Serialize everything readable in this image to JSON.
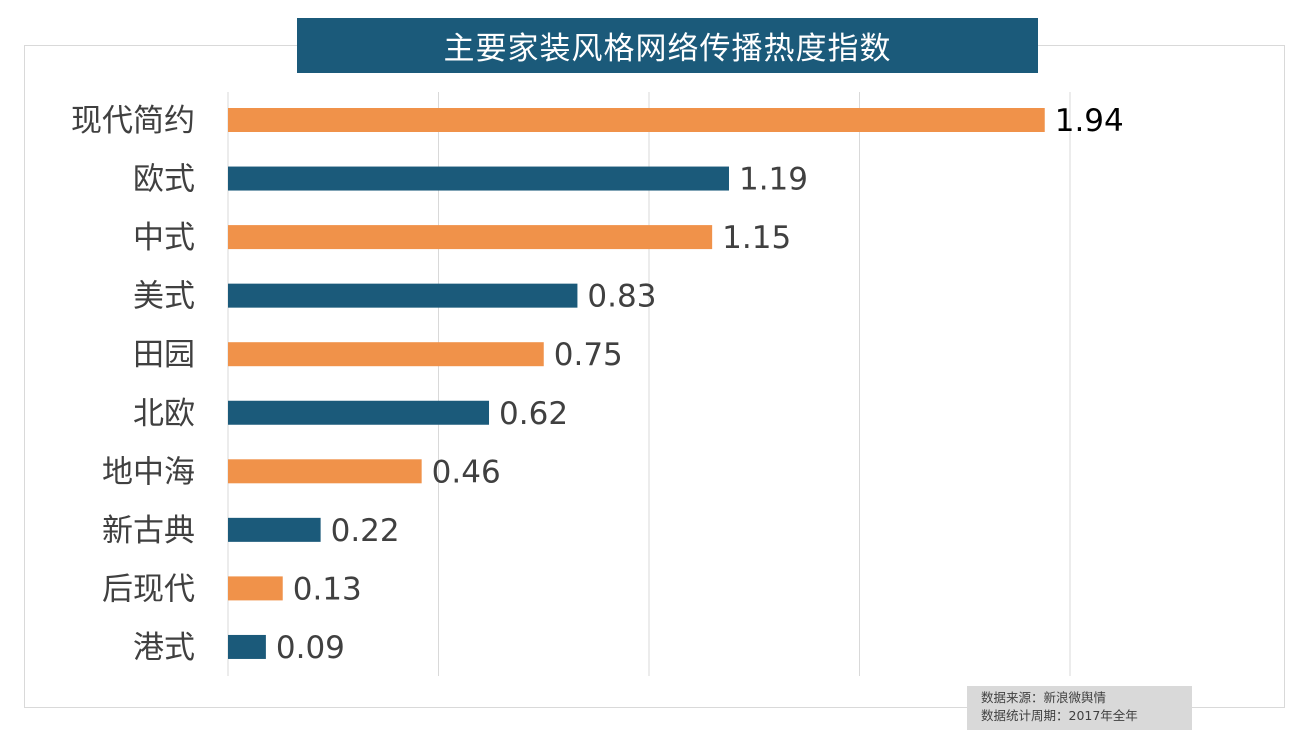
{
  "chart_data": {
    "type": "bar",
    "orientation": "horizontal",
    "title": "主要家装风格网络传播热度指数",
    "categories": [
      "现代简约",
      "欧式",
      "中式",
      "美式",
      "田园",
      "北欧",
      "地中海",
      "新古典",
      "后现代",
      "港式"
    ],
    "values": [
      1.94,
      1.19,
      1.15,
      0.83,
      0.75,
      0.62,
      0.46,
      0.22,
      0.13,
      0.09
    ],
    "xlim": [
      0,
      2.5
    ],
    "gridlines": [
      0.5,
      1.0,
      1.5,
      2.0
    ],
    "grid": true,
    "legend": "none",
    "colors": {
      "odd": "#f0924a",
      "even": "#1b5a7a"
    },
    "xlabel": "",
    "ylabel": ""
  },
  "footnote": {
    "source": "数据来源：新浪微舆情",
    "period": "数据统计周期：2017年全年"
  }
}
